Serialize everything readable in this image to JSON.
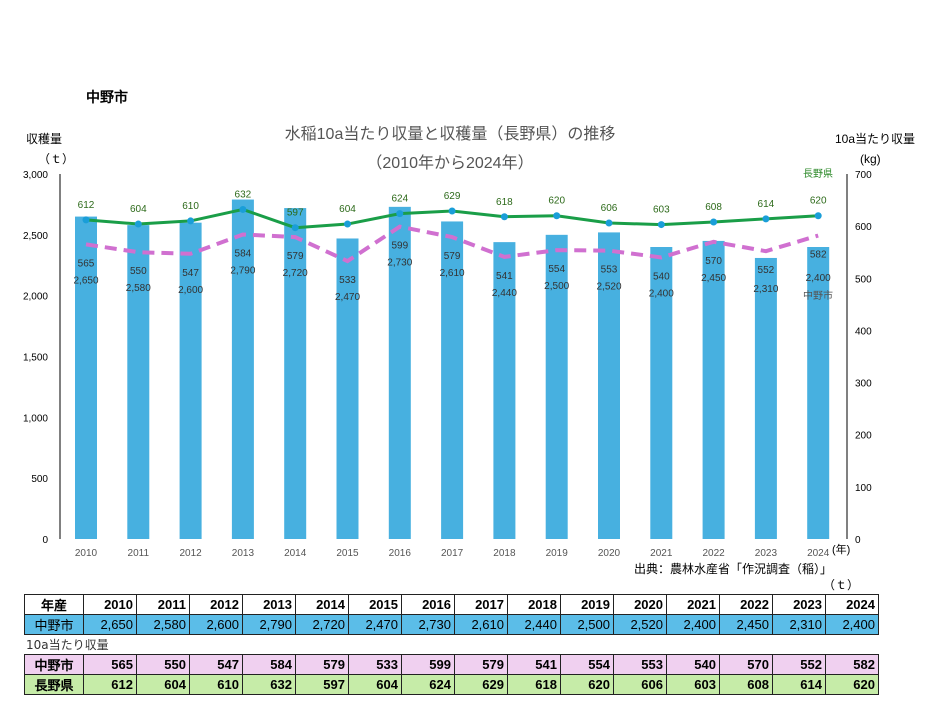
{
  "page_title": "中野市",
  "chart_data": {
    "type": "bar+line",
    "title": "水稲10a当たり収量と収穫量（長野県）の推移",
    "subtitle": "（2010年から2024年）",
    "ylabel_left": "収穫量",
    "yunit_left": "（ｔ）",
    "ylabel_right": "10a当たり収量",
    "yunit_right": "(kg)",
    "xunit": "(年)",
    "ylim_left": [
      0,
      3000
    ],
    "yticks_left": [
      "0",
      "500",
      "1,000",
      "1,500",
      "2,000",
      "2,500",
      "3,000"
    ],
    "ylim_right": [
      0,
      700
    ],
    "yticks_right": [
      "0",
      "100",
      "200",
      "300",
      "400",
      "500",
      "600",
      "700"
    ],
    "categories": [
      "2010",
      "2011",
      "2012",
      "2013",
      "2014",
      "2015",
      "2016",
      "2017",
      "2018",
      "2019",
      "2020",
      "2021",
      "2022",
      "2023",
      "2024"
    ],
    "bars": {
      "values": [
        2650,
        2580,
        2600,
        2790,
        2720,
        2470,
        2730,
        2610,
        2440,
        2500,
        2520,
        2400,
        2450,
        2310,
        2400
      ],
      "labels": [
        "2,650",
        "2,580",
        "2,600",
        "2,790",
        "2,720",
        "2,470",
        "2,730",
        "2,610",
        "2,440",
        "2,500",
        "2,520",
        "2,400",
        "2,450",
        "2,310",
        "2,400"
      ],
      "color": "#47b0e0"
    },
    "series": [
      {
        "name": "長野県",
        "values": [
          612,
          604,
          610,
          632,
          597,
          604,
          624,
          629,
          618,
          620,
          606,
          603,
          608,
          614,
          620
        ],
        "color": "#1a9e48"
      },
      {
        "name": "中野市",
        "values": [
          565,
          550,
          547,
          584,
          579,
          533,
          599,
          579,
          541,
          554,
          553,
          540,
          570,
          552,
          582
        ],
        "color": "#d070d0"
      }
    ],
    "source": "出典：農林水産省「作況調査（稲）」"
  },
  "table": {
    "unit": "（ｔ）",
    "header_label": "年産",
    "production_label": "中野市",
    "yield_caption": "10a当たり収量",
    "yield_rows": [
      "中野市",
      "長野県"
    ]
  }
}
